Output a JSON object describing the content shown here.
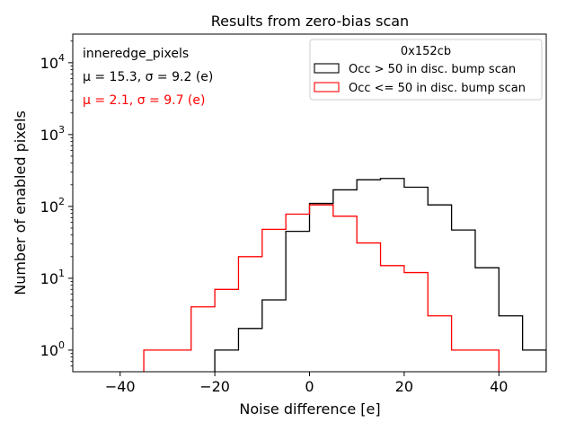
{
  "chart_data": {
    "type": "histogram",
    "title": "Results from zero-bias scan",
    "xlabel": "Noise difference [e]",
    "ylabel": "Number of enabled pixels",
    "yscale": "log",
    "xlim": [
      -50,
      50
    ],
    "ylim": [
      0.5,
      25000
    ],
    "xticks": [
      -40,
      -20,
      0,
      20,
      40
    ],
    "xtick_labels": [
      "−40",
      "−20",
      "0",
      "20",
      "40"
    ],
    "yticks": [
      1,
      10,
      100,
      1000,
      10000
    ],
    "bin_edges": [
      -50,
      -45,
      -40,
      -35,
      -30,
      -25,
      -20,
      -15,
      -10,
      -5,
      0,
      5,
      10,
      15,
      20,
      25,
      30,
      35,
      40,
      45,
      50
    ],
    "series": [
      {
        "name": "Occ > 50 in disc. bump scan",
        "color": "#000000",
        "counts": [
          0,
          0,
          0,
          0,
          0,
          0,
          1,
          2,
          5,
          45,
          110,
          170,
          235,
          245,
          185,
          105,
          47,
          14,
          3,
          1
        ]
      },
      {
        "name": "Occ <= 50 in disc. bump scan",
        "color": "#ff0000",
        "counts": [
          0,
          0,
          0,
          1,
          1,
          4,
          7,
          20,
          48,
          78,
          105,
          73,
          31,
          15,
          12,
          3,
          1,
          1,
          0,
          0
        ]
      }
    ],
    "legend": {
      "title": "0x152cb",
      "position": "top-right"
    },
    "annotations": [
      {
        "text": "inneredge_pixels",
        "color": "#000000"
      },
      {
        "text": "μ = 15.3, σ = 9.2 (e)",
        "color": "#000000"
      },
      {
        "text": "μ = 2.1, σ = 9.7 (e)",
        "color": "#ff0000"
      }
    ]
  }
}
